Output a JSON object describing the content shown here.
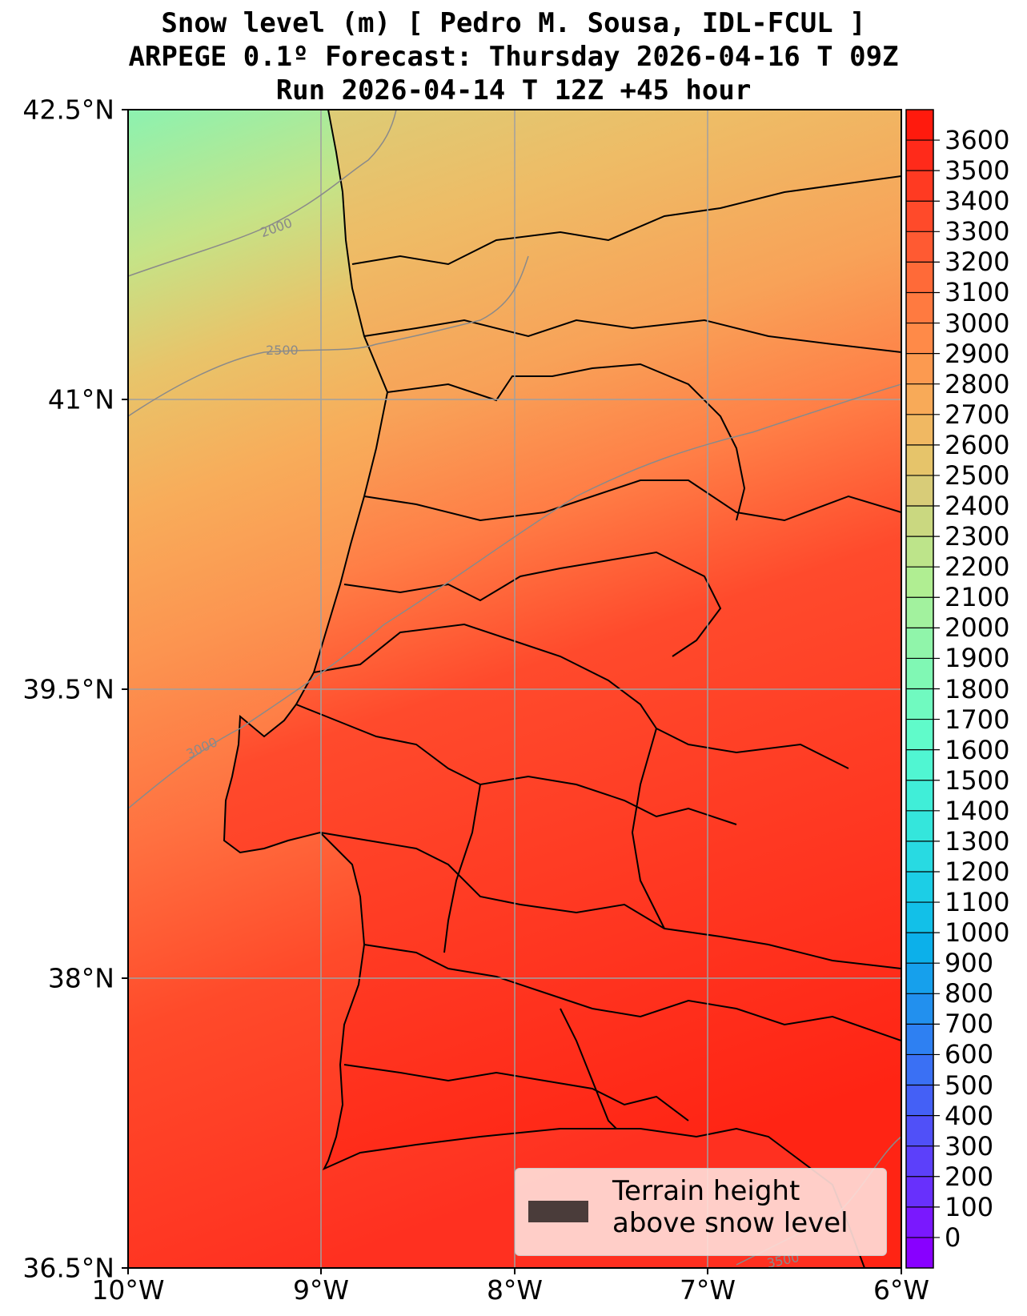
{
  "title": {
    "line1": "Snow level (m) [ Pedro M. Sousa, IDL-FCUL ]",
    "line2": "ARPEGE 0.1º Forecast: Thursday 2026-04-16 T 09Z",
    "line3": "Run 2026-04-14 T 12Z +45 hour"
  },
  "map": {
    "lat_labels": [
      "42.5°N",
      "41°N",
      "39.5°N",
      "38°N",
      "36.5°N"
    ],
    "lon_labels": [
      "10°W",
      "9°W",
      "8°W",
      "7°W",
      "6°W"
    ],
    "contour_labels": [
      "2000",
      "2500",
      "3000",
      "3500"
    ]
  },
  "colorbar": {
    "ticks": [
      "3600",
      "3500",
      "3400",
      "3300",
      "3200",
      "3100",
      "3000",
      "2900",
      "2800",
      "2700",
      "2600",
      "2500",
      "2400",
      "2300",
      "2200",
      "2100",
      "2000",
      "1900",
      "1800",
      "1700",
      "1600",
      "1500",
      "1400",
      "1300",
      "1200",
      "1100",
      "1000",
      "900",
      "800",
      "700",
      "600",
      "500",
      "400",
      "300",
      "200",
      "100",
      "0"
    ],
    "colors": [
      "#ff1a0d",
      "#ff2a1a",
      "#ff3a22",
      "#ff4a2a",
      "#ff5a32",
      "#ff6a38",
      "#ff7a40",
      "#ff8a48",
      "#fc9a50",
      "#f8aa58",
      "#f0b862",
      "#e6c46a",
      "#d8cc78",
      "#cad880",
      "#bde48a",
      "#b0ee92",
      "#a2f29e",
      "#90f5aa",
      "#80f8b4",
      "#70fac0",
      "#60fbca",
      "#50f6d2",
      "#40eed8",
      "#34e6dc",
      "#28dae2",
      "#1ccee6",
      "#12c0e8",
      "#0cb0ea",
      "#16a0ec",
      "#2290ee",
      "#2e80f2",
      "#3a70f4",
      "#4460f6",
      "#5050f8",
      "#5c40fa",
      "#6830fc",
      "#7a18fe",
      "#8800ff"
    ]
  },
  "legend": {
    "line1": "Terrain height",
    "line2": "above snow level",
    "swatch_color": "#4a3c3a"
  }
}
